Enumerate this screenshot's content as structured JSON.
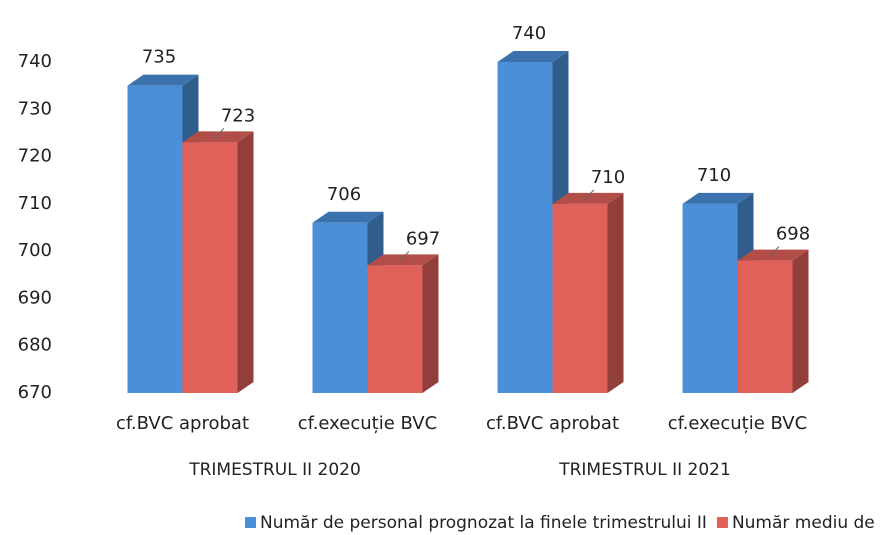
{
  "chart_data": {
    "type": "bar3d",
    "categories": [
      "cf.BVC aprobat",
      "cf.execuție BVC",
      "cf.BVC aprobat",
      "cf.execuție BVC"
    ],
    "groups": [
      "TRIMESTRUL II 2020",
      "TRIMESTRUL II 2021"
    ],
    "series": [
      {
        "name": "Număr de personal prognozat la finele trimestrului II",
        "color": "#4a8fd8",
        "values": [
          735,
          706,
          740,
          710
        ]
      },
      {
        "name": "Număr mediu de salariați total",
        "color": "#e0605a",
        "values": [
          723,
          697,
          710,
          698
        ]
      }
    ],
    "ylim": [
      670,
      740
    ],
    "yticks": [
      670,
      680,
      690,
      700,
      710,
      720,
      730,
      740
    ],
    "grid": false
  }
}
